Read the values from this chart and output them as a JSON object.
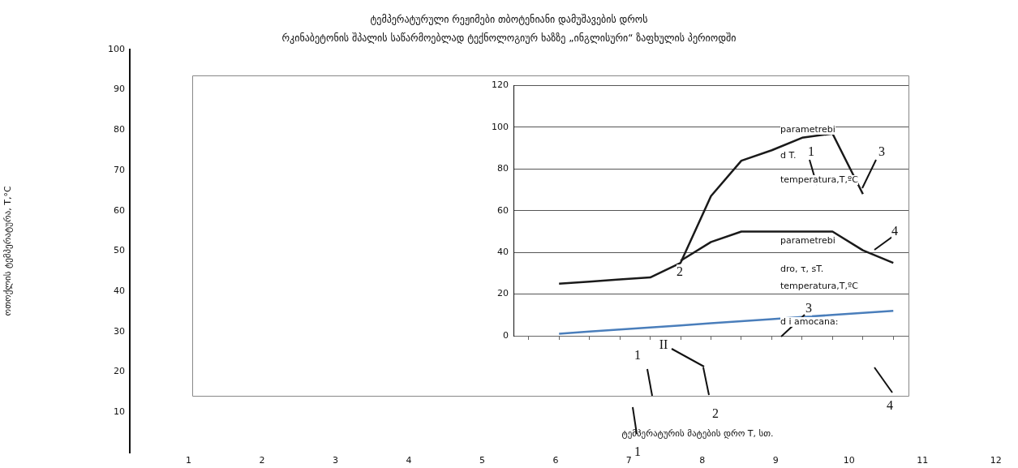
{
  "chart_data": [
    {
      "type": "line",
      "title": "ტემპერატურული რეჟიმები თბოტენიანი დამუშავების დროს",
      "subtitle": "რკინაბეტონის შპალის საწარმოებლად ტექნოლოგიურ ხაზზე „ინგლისური“ ზაფხულის პერიოდში",
      "ylabel": "ოთოქლის ტემპერატურა, T,°C",
      "xlim": [
        0.2,
        12.3
      ],
      "xticks": [
        1,
        2,
        3,
        4,
        5,
        6,
        7,
        8,
        9,
        10,
        11,
        12
      ],
      "ylim": [
        0,
        100
      ],
      "yticks": [
        10,
        20,
        30,
        40,
        50,
        60,
        70,
        80,
        90,
        100
      ],
      "grid": false
    },
    {
      "type": "line",
      "xlabel": "ტემპერატურის მატების დრო T, სთ.",
      "categories": [
        null,
        null,
        null,
        null,
        null,
        null,
        null,
        null,
        null,
        null,
        null,
        null,
        null
      ],
      "ylim": [
        0,
        120
      ],
      "yticks": [
        0,
        20,
        40,
        60,
        80,
        100,
        120
      ],
      "grid": "y",
      "marker": "none",
      "line_style": "solid",
      "legend": false,
      "series": [
        {
          "color": "#1a1a1a",
          "values": [
            null,
            25,
            26,
            27,
            28,
            35,
            67,
            84,
            89,
            95,
            97,
            68,
            null
          ]
        },
        {
          "color": "#1a1a1a",
          "values": [
            null,
            null,
            null,
            null,
            null,
            36,
            45,
            50,
            50,
            50,
            50,
            41,
            35
          ]
        },
        {
          "color": "#4a7ebb",
          "values": [
            null,
            1,
            2,
            3,
            4,
            5,
            6,
            7,
            8,
            9,
            10,
            11,
            12
          ]
        }
      ],
      "annotations": [
        "parametrebi",
        "d T.",
        "temperatura,T,ºC",
        "parametrebi",
        "dro, τ, sT.",
        "temperatura,T,ºC",
        "d i amocana:",
        "1",
        "3",
        "2",
        "4",
        "II",
        "3",
        "1",
        "2",
        "4",
        "1"
      ]
    }
  ]
}
